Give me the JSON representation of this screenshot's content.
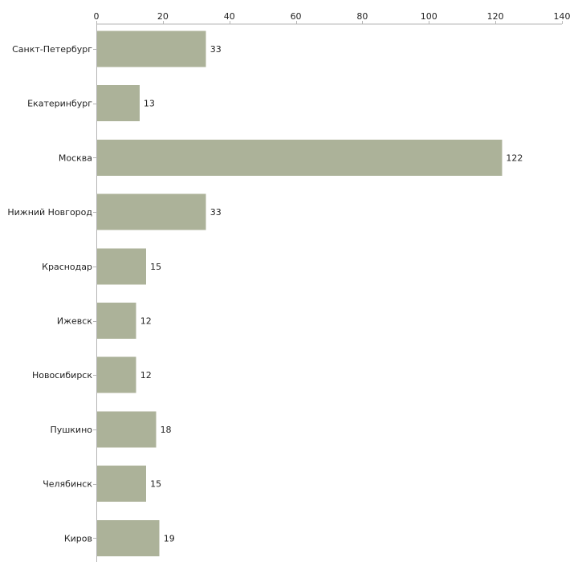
{
  "chart_data": {
    "type": "bar",
    "orientation": "horizontal",
    "title": "",
    "xlabel": "",
    "ylabel": "",
    "xlim": [
      0,
      140
    ],
    "x_ticks": [
      0,
      20,
      40,
      60,
      80,
      100,
      120,
      140
    ],
    "x_axis_position": "top",
    "grid": false,
    "bar_color": "#acb299",
    "categories": [
      "Санкт-Петербург",
      "Екатеринбург",
      "Москва",
      "Нижний Новгород",
      "Краснодар",
      "Ижевск",
      "Новосибирск",
      "Пушкино",
      "Челябинск",
      "Киров"
    ],
    "values": [
      33,
      13,
      122,
      33,
      15,
      12,
      12,
      18,
      15,
      19
    ]
  }
}
